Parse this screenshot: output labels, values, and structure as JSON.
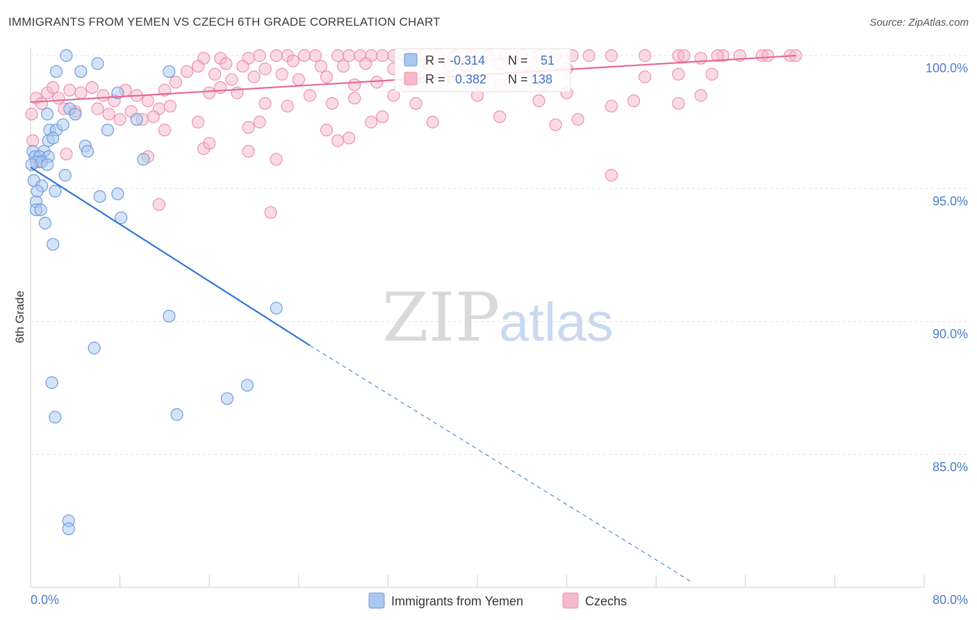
{
  "title": "IMMIGRANTS FROM YEMEN VS CZECH 6TH GRADE CORRELATION CHART",
  "source": "Source: ZipAtlas.com",
  "watermark": {
    "zip": "ZIP",
    "atlas": "atlas"
  },
  "colors": {
    "blue_fill": "#a9c7ef",
    "blue_stroke": "#6d9be0",
    "blue_line": "#2f76d2",
    "pink_fill": "#f6b8cb",
    "pink_stroke": "#ee8fad",
    "pink_line": "#e7678f",
    "grid": "#e3e3e3",
    "tick_text": "#4a7cc9"
  },
  "chart_data": {
    "type": "scatter",
    "title": "IMMIGRANTS FROM YEMEN VS CZECH 6TH GRADE CORRELATION CHART",
    "xlabel": "",
    "ylabel": "6th Grade",
    "xlim": [
      0,
      80
    ],
    "ylim": [
      80.2,
      101.0
    ],
    "x_tick_labels": [
      "0.0%",
      "80.0%"
    ],
    "y_ticks": [
      {
        "value": 85,
        "label": "85.0%"
      },
      {
        "value": 90,
        "label": "90.0%"
      },
      {
        "value": 95,
        "label": "95.0%"
      },
      {
        "value": 100,
        "label": "100.0%"
      }
    ],
    "legend": {
      "stats": [
        {
          "r_label": "R =",
          "r_value": "-0.314",
          "n_label": "N =",
          "n_value": "51"
        },
        {
          "r_label": "R =",
          "r_value": "0.382",
          "n_label": "N =",
          "n_value": "138"
        }
      ],
      "items": [
        "Immigrants from Yemen",
        "Czechs"
      ]
    },
    "series": [
      {
        "name": "Immigrants from Yemen",
        "trend": {
          "x0": 0,
          "y0": 95.8,
          "x1": 25,
          "y1": 89.1,
          "dash_to_x": 59.2,
          "dash_to_y": 80.2
        },
        "points": [
          [
            3.2,
            100.0
          ],
          [
            2.3,
            99.4
          ],
          [
            4.5,
            99.4
          ],
          [
            6.0,
            99.7
          ],
          [
            12.4,
            99.4
          ],
          [
            7.8,
            98.6
          ],
          [
            3.5,
            98.0
          ],
          [
            1.5,
            97.8
          ],
          [
            4.0,
            97.8
          ],
          [
            1.7,
            97.2
          ],
          [
            2.3,
            97.2
          ],
          [
            2.9,
            97.4
          ],
          [
            6.9,
            97.2
          ],
          [
            9.5,
            97.6
          ],
          [
            1.6,
            96.8
          ],
          [
            2.0,
            96.9
          ],
          [
            4.9,
            96.6
          ],
          [
            5.1,
            96.4
          ],
          [
            0.2,
            96.4
          ],
          [
            1.2,
            96.4
          ],
          [
            0.4,
            96.2
          ],
          [
            0.8,
            96.2
          ],
          [
            1.6,
            96.2
          ],
          [
            0.5,
            96.0
          ],
          [
            1.0,
            96.0
          ],
          [
            1.5,
            95.9
          ],
          [
            3.1,
            95.5
          ],
          [
            10.1,
            96.1
          ],
          [
            0.3,
            95.3
          ],
          [
            1.0,
            95.1
          ],
          [
            0.6,
            94.9
          ],
          [
            2.2,
            94.9
          ],
          [
            6.2,
            94.7
          ],
          [
            7.8,
            94.8
          ],
          [
            0.5,
            94.5
          ],
          [
            0.5,
            94.2
          ],
          [
            0.9,
            94.2
          ],
          [
            1.3,
            93.7
          ],
          [
            8.1,
            93.9
          ],
          [
            2.0,
            92.9
          ],
          [
            22.0,
            90.5
          ],
          [
            12.4,
            90.2
          ],
          [
            5.7,
            89.0
          ],
          [
            1.9,
            87.7
          ],
          [
            19.4,
            87.6
          ],
          [
            17.6,
            87.1
          ],
          [
            2.2,
            86.4
          ],
          [
            13.1,
            86.5
          ],
          [
            3.4,
            82.5
          ],
          [
            3.4,
            82.2
          ],
          [
            0.1,
            95.9
          ]
        ]
      },
      {
        "name": "Czechs",
        "trend": {
          "x0": 0,
          "y0": 98.25,
          "x1": 68.5,
          "y1": 100.0
        },
        "points": [
          [
            15.5,
            99.9
          ],
          [
            17.0,
            99.9
          ],
          [
            19.5,
            99.9
          ],
          [
            20.5,
            100.0
          ],
          [
            22.0,
            100.0
          ],
          [
            23.0,
            100.0
          ],
          [
            24.5,
            100.0
          ],
          [
            25.5,
            100.0
          ],
          [
            27.5,
            100.0
          ],
          [
            28.5,
            100.0
          ],
          [
            29.5,
            100.0
          ],
          [
            30.5,
            100.0
          ],
          [
            31.5,
            100.0
          ],
          [
            32.5,
            100.0
          ],
          [
            33.5,
            100.0
          ],
          [
            35.0,
            100.0
          ],
          [
            36.5,
            100.0
          ],
          [
            38.0,
            100.0
          ],
          [
            39.5,
            100.0
          ],
          [
            41.0,
            100.0
          ],
          [
            42.5,
            100.0
          ],
          [
            44.0,
            100.0
          ],
          [
            45.5,
            100.0
          ],
          [
            47.0,
            100.0
          ],
          [
            48.5,
            100.0
          ],
          [
            50.0,
            100.0
          ],
          [
            52.0,
            100.0
          ],
          [
            55.0,
            100.0
          ],
          [
            58.0,
            100.0
          ],
          [
            62.0,
            100.0
          ],
          [
            63.5,
            100.0
          ],
          [
            65.5,
            100.0
          ],
          [
            68.0,
            100.0
          ],
          [
            68.5,
            100.0
          ],
          [
            17.5,
            99.7
          ],
          [
            21.0,
            99.5
          ],
          [
            23.5,
            99.8
          ],
          [
            26.0,
            99.6
          ],
          [
            28.0,
            99.6
          ],
          [
            30.0,
            99.7
          ],
          [
            32.5,
            99.5
          ],
          [
            35.5,
            99.7
          ],
          [
            37.5,
            99.6
          ],
          [
            39.0,
            99.6
          ],
          [
            42.0,
            99.7
          ],
          [
            45.0,
            99.4
          ],
          [
            48.0,
            99.5
          ],
          [
            14.0,
            99.4
          ],
          [
            15.0,
            99.6
          ],
          [
            16.5,
            99.3
          ],
          [
            18.0,
            99.1
          ],
          [
            19.0,
            99.6
          ],
          [
            20.0,
            99.2
          ],
          [
            22.5,
            99.3
          ],
          [
            24.0,
            99.1
          ],
          [
            26.5,
            99.2
          ],
          [
            29.0,
            98.9
          ],
          [
            31.0,
            99.0
          ],
          [
            33.5,
            98.9
          ],
          [
            35.0,
            99.2
          ],
          [
            37.0,
            99.1
          ],
          [
            40.0,
            99.0
          ],
          [
            42.0,
            98.9
          ],
          [
            46.0,
            98.9
          ],
          [
            55.0,
            99.2
          ],
          [
            58.0,
            99.3
          ],
          [
            61.0,
            99.3
          ],
          [
            12.0,
            98.7
          ],
          [
            13.0,
            99.0
          ],
          [
            16.0,
            98.6
          ],
          [
            17.0,
            98.8
          ],
          [
            18.5,
            98.6
          ],
          [
            21.0,
            98.2
          ],
          [
            23.0,
            98.1
          ],
          [
            25.0,
            98.5
          ],
          [
            27.0,
            98.2
          ],
          [
            29.0,
            98.4
          ],
          [
            32.5,
            98.5
          ],
          [
            34.5,
            98.2
          ],
          [
            40.0,
            98.5
          ],
          [
            45.5,
            98.3
          ],
          [
            48.0,
            98.6
          ],
          [
            52.0,
            98.1
          ],
          [
            54.0,
            98.3
          ],
          [
            58.0,
            98.2
          ],
          [
            60.0,
            98.5
          ],
          [
            1.5,
            98.6
          ],
          [
            2.5,
            98.4
          ],
          [
            3.5,
            98.7
          ],
          [
            4.5,
            98.6
          ],
          [
            5.5,
            98.8
          ],
          [
            6.5,
            98.5
          ],
          [
            7.5,
            98.3
          ],
          [
            8.5,
            98.7
          ],
          [
            9.5,
            98.5
          ],
          [
            10.5,
            98.3
          ],
          [
            11.5,
            98.0
          ],
          [
            12.5,
            98.1
          ],
          [
            0.5,
            98.4
          ],
          [
            1.0,
            98.2
          ],
          [
            2.0,
            98.8
          ],
          [
            3.0,
            98.0
          ],
          [
            4.0,
            97.9
          ],
          [
            6.0,
            98.0
          ],
          [
            7.0,
            97.8
          ],
          [
            8.0,
            97.6
          ],
          [
            9.0,
            97.9
          ],
          [
            10.0,
            97.6
          ],
          [
            11.0,
            97.7
          ],
          [
            15.0,
            97.5
          ],
          [
            19.5,
            97.3
          ],
          [
            20.5,
            97.5
          ],
          [
            26.5,
            97.2
          ],
          [
            30.5,
            97.5
          ],
          [
            31.5,
            97.7
          ],
          [
            36.0,
            97.5
          ],
          [
            42.0,
            97.7
          ],
          [
            47.0,
            97.4
          ],
          [
            49.0,
            97.6
          ],
          [
            12.0,
            97.2
          ],
          [
            15.5,
            96.5
          ],
          [
            16.0,
            96.7
          ],
          [
            19.5,
            96.4
          ],
          [
            22.0,
            96.1
          ],
          [
            27.5,
            96.8
          ],
          [
            28.5,
            96.9
          ],
          [
            0.2,
            96.8
          ],
          [
            0.1,
            97.8
          ],
          [
            0.8,
            96.0
          ],
          [
            3.2,
            96.3
          ],
          [
            10.5,
            96.2
          ],
          [
            52.0,
            95.5
          ],
          [
            11.5,
            94.4
          ],
          [
            21.5,
            94.1
          ],
          [
            60.0,
            99.9
          ],
          [
            61.5,
            100.0
          ],
          [
            66.0,
            100.0
          ],
          [
            58.5,
            100.0
          ]
        ]
      }
    ]
  }
}
